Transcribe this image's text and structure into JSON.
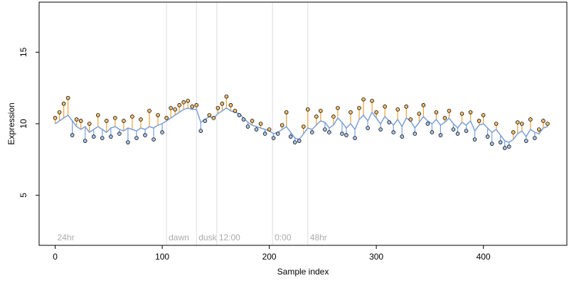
{
  "chart_data": {
    "type": "scatter",
    "title": "",
    "xlabel": "Sample index",
    "ylabel": "Expression",
    "xlim": [
      -15,
      478
    ],
    "ylim": [
      1.5,
      18.5
    ],
    "x_ticks": [
      0,
      100,
      200,
      300,
      400
    ],
    "y_ticks": [
      5,
      10,
      15
    ],
    "grid": false,
    "colors": {
      "fitted_line": "#7a9fd6",
      "residual_above": "#f0a030",
      "residual_below": "#7a9fd6",
      "point_fill_above": "#f5c070",
      "point_fill_below": "#a9c4ec",
      "point_edge": "#000000",
      "marker_line": "#dddddd",
      "marker_text": "#aaaaaa"
    },
    "markers": [
      {
        "x": 0,
        "label": "24hr"
      },
      {
        "x": 104,
        "label": "dawn"
      },
      {
        "x": 132,
        "label": "dusk"
      },
      {
        "x": 151,
        "label": "12:00"
      },
      {
        "x": 203,
        "label": "0:00"
      },
      {
        "x": 236,
        "label": "48hr"
      }
    ],
    "series": [
      {
        "x": [
          0,
          4,
          8,
          12,
          16,
          20,
          24,
          28,
          32,
          36,
          40,
          44,
          48,
          52,
          56,
          60,
          64,
          68,
          72,
          76,
          80,
          84,
          88,
          92,
          96,
          100,
          104,
          108,
          112,
          116,
          120,
          124,
          128,
          132,
          136,
          140,
          144,
          148,
          152,
          156,
          160,
          164,
          168,
          172,
          176,
          180,
          184,
          188,
          192,
          196,
          200,
          204,
          208,
          212,
          216,
          220,
          224,
          228,
          232,
          236,
          240,
          244,
          248,
          252,
          256,
          260,
          264,
          268,
          272,
          276,
          280,
          284,
          288,
          292,
          296,
          300,
          304,
          308,
          312,
          316,
          320,
          324,
          328,
          332,
          336,
          340,
          344,
          348,
          352,
          356,
          360,
          364,
          368,
          372,
          376,
          380,
          384,
          388,
          392,
          396,
          400,
          404,
          408,
          412,
          416,
          420,
          424,
          428,
          432,
          436,
          440,
          444,
          448,
          452,
          456,
          460
        ],
        "fitted": [
          10.0,
          10.2,
          10.4,
          10.6,
          10.2,
          9.8,
          9.6,
          9.8,
          9.4,
          9.6,
          9.8,
          9.6,
          9.4,
          9.7,
          9.8,
          9.6,
          9.5,
          9.7,
          9.6,
          9.5,
          9.7,
          9.6,
          9.8,
          9.7,
          9.9,
          10.0,
          10.2,
          10.4,
          10.6,
          10.8,
          11.0,
          11.1,
          11.0,
          11.0,
          10.1,
          10.3,
          10.5,
          10.4,
          10.7,
          10.9,
          11.1,
          10.9,
          10.8,
          10.7,
          10.4,
          10.1,
          9.9,
          9.8,
          9.7,
          9.6,
          9.5,
          9.3,
          9.4,
          9.6,
          9.8,
          9.4,
          9.0,
          8.9,
          9.3,
          9.7,
          9.6,
          9.9,
          10.2,
          10.1,
          9.7,
          9.9,
          10.4,
          10.1,
          9.7,
          10.0,
          9.6,
          10.3,
          10.6,
          10.2,
          10.8,
          10.4,
          10.0,
          10.5,
          10.2,
          9.9,
          10.3,
          9.8,
          10.4,
          10.2,
          9.7,
          10.1,
          10.5,
          10.2,
          10.0,
          10.3,
          9.9,
          10.1,
          10.4,
          10.0,
          9.7,
          10.1,
          9.9,
          10.2,
          9.5,
          9.9,
          10.0,
          9.7,
          9.4,
          9.6,
          9.2,
          8.8,
          8.7,
          8.9,
          9.3,
          9.5,
          9.1,
          9.6,
          9.4,
          9.3,
          9.7,
          9.8
        ],
        "observed": [
          10.4,
          10.8,
          11.4,
          11.8,
          9.2,
          10.3,
          10.2,
          8.8,
          10.0,
          9.1,
          10.6,
          9.0,
          10.2,
          9.1,
          10.4,
          9.3,
          10.2,
          8.7,
          10.5,
          9.0,
          10.3,
          9.2,
          10.9,
          8.9,
          10.6,
          9.4,
          10.4,
          11.1,
          11.0,
          11.3,
          11.5,
          11.6,
          11.2,
          11.3,
          9.5,
          10.2,
          10.6,
          10.4,
          11.1,
          11.4,
          11.9,
          11.3,
          10.9,
          10.6,
          10.3,
          9.8,
          10.2,
          9.6,
          10.0,
          9.3,
          9.6,
          9.0,
          9.3,
          9.9,
          10.8,
          9.1,
          8.7,
          8.8,
          9.8,
          11.0,
          9.4,
          10.5,
          10.9,
          9.6,
          9.4,
          10.5,
          11.1,
          9.3,
          9.2,
          10.8,
          9.0,
          11.1,
          11.7,
          9.7,
          11.6,
          10.8,
          9.6,
          11.2,
          10.1,
          9.4,
          11.0,
          9.1,
          11.2,
          10.3,
          9.3,
          10.7,
          11.3,
          10.0,
          9.4,
          10.8,
          9.2,
          10.4,
          10.9,
          9.6,
          9.3,
          10.7,
          9.5,
          10.8,
          8.9,
          10.2,
          10.6,
          9.1,
          8.6,
          10.0,
          8.7,
          8.3,
          8.4,
          9.4,
          10.1,
          10.0,
          8.8,
          10.3,
          9.0,
          9.6,
          10.2,
          10.0
        ]
      }
    ]
  }
}
